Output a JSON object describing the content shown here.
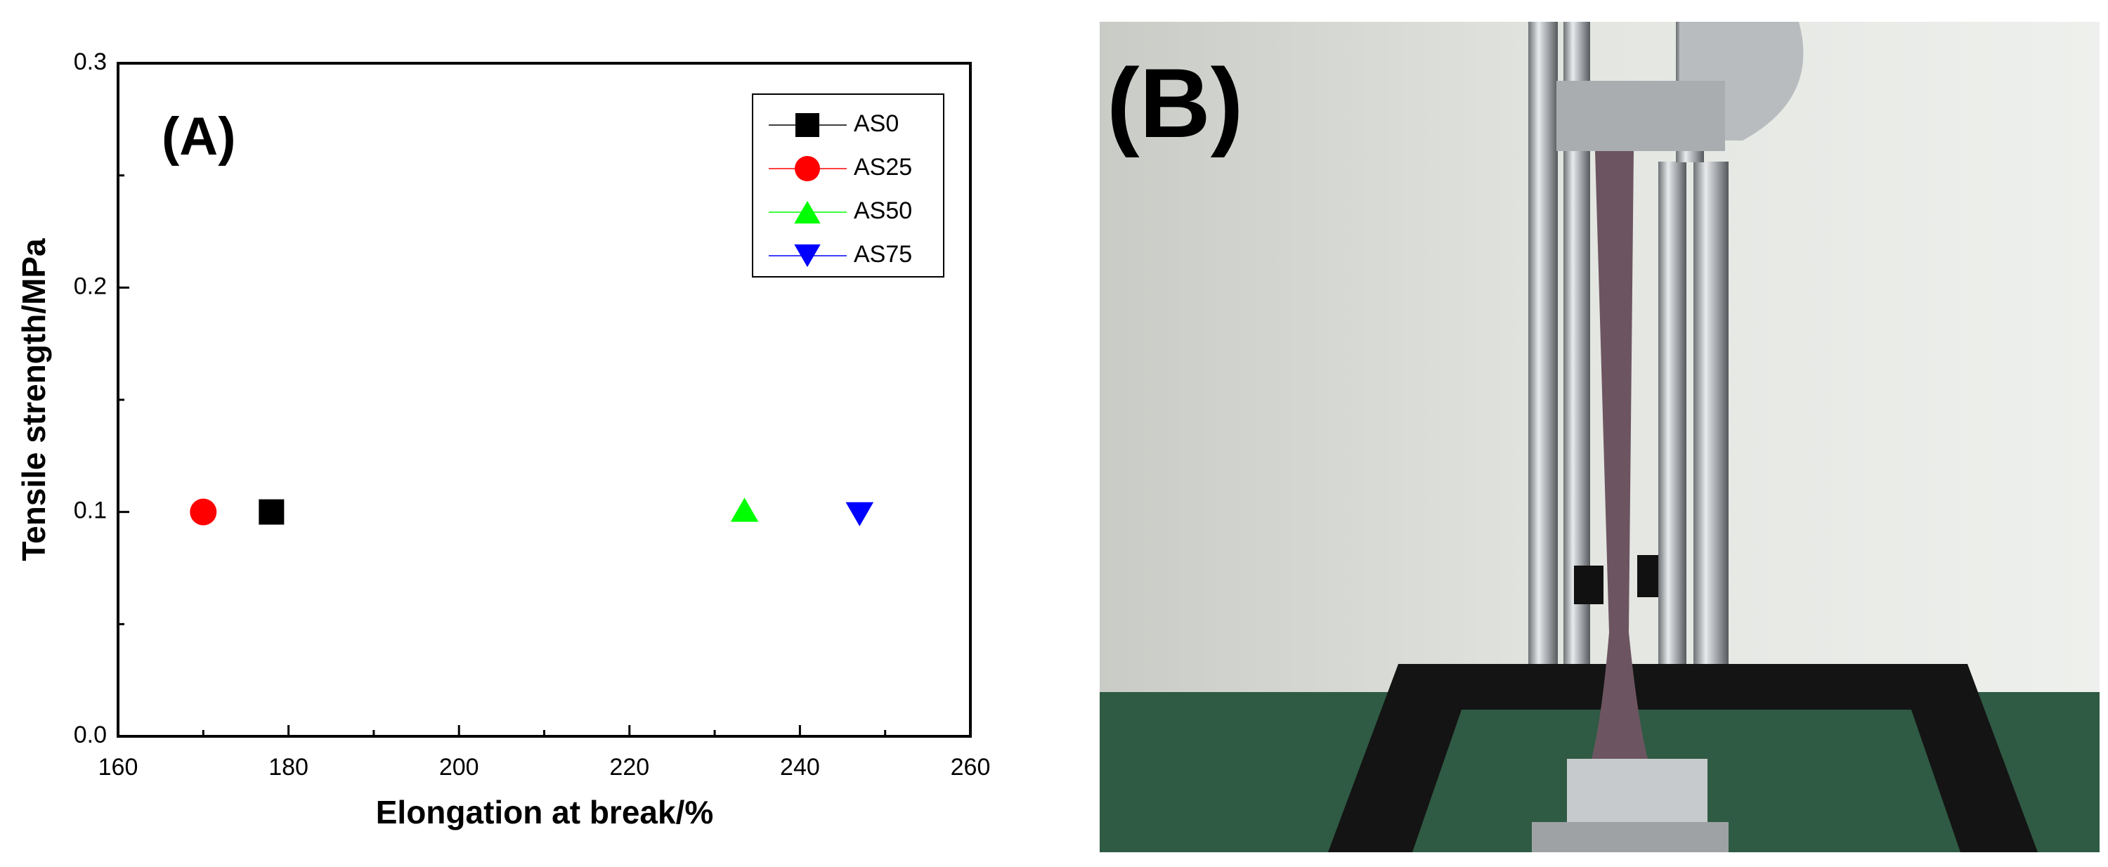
{
  "chart_data": {
    "type": "scatter",
    "panel_label": "(A)",
    "x_label": "Elongation at break/%",
    "y_label": "Tensile strength/MPa",
    "xlim": [
      160,
      260
    ],
    "xticks": [
      160,
      180,
      200,
      220,
      240,
      260
    ],
    "ylim": [
      0,
      0.3
    ],
    "yticks": [
      {
        "value": 0,
        "label": "0.0"
      },
      0.1,
      0.2,
      0.3
    ],
    "legend": "upper right",
    "series": [
      {
        "name": "AS0",
        "color": "#000000",
        "marker": "square",
        "x": [
          178
        ],
        "values": [
          0.1
        ]
      },
      {
        "name": "AS25",
        "color": "#ff0000",
        "marker": "circle",
        "x": [
          170
        ],
        "values": [
          0.1
        ]
      },
      {
        "name": "AS50",
        "color": "#00ff00",
        "marker": "triangle-up",
        "x": [
          233.5
        ],
        "values": [
          0.101
        ]
      },
      {
        "name": "AS75",
        "color": "#0000ff",
        "marker": "triangle-down",
        "x": [
          247
        ],
        "values": [
          0.099
        ]
      }
    ]
  },
  "photo": {
    "panel_label": "(B)"
  }
}
